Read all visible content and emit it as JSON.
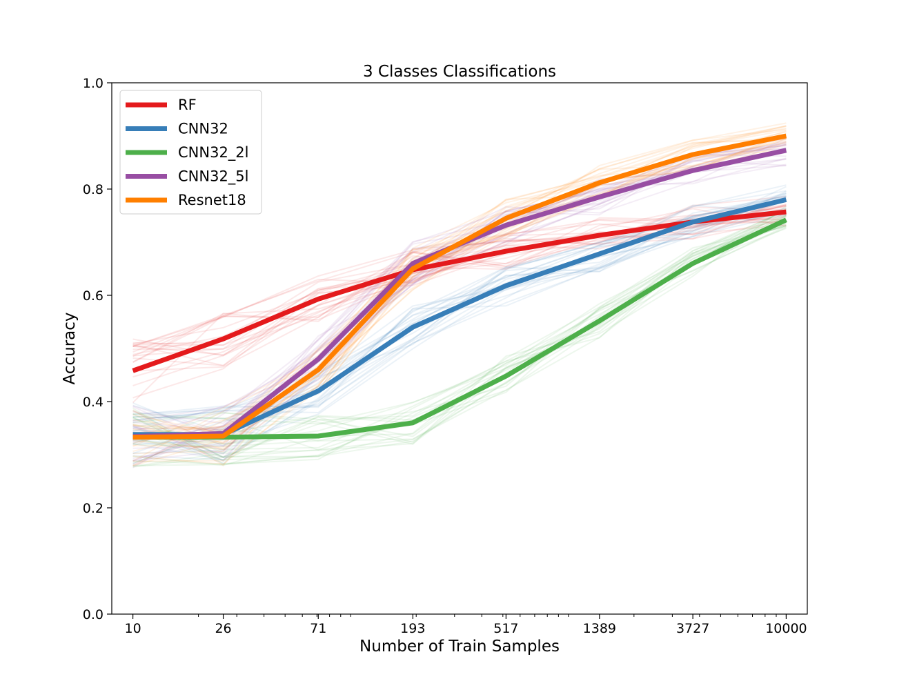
{
  "chart_data": {
    "type": "line",
    "title": "3 Classes Classifications",
    "xlabel": "Number of Train Samples",
    "ylabel": "Accuracy",
    "x_scale": "log",
    "x": [
      10,
      26,
      71,
      193,
      517,
      1389,
      3727,
      10000
    ],
    "x_tick_labels": [
      "10",
      "26",
      "71",
      "193",
      "517",
      "1389",
      "3727",
      "10000"
    ],
    "xlim": [
      8,
      12500
    ],
    "ylim": [
      0.0,
      1.0
    ],
    "y_ticks": [
      "0.0",
      "0.2",
      "0.4",
      "0.6",
      "0.8",
      "1.0"
    ],
    "grid": false,
    "legend_position": "top-left",
    "series": [
      {
        "name": "RF",
        "color": "#e41a1c",
        "values": [
          0.458,
          0.518,
          0.593,
          0.648,
          0.683,
          0.713,
          0.738,
          0.757
        ]
      },
      {
        "name": "CNN32",
        "color": "#377eb8",
        "values": [
          0.338,
          0.338,
          0.42,
          0.54,
          0.618,
          0.678,
          0.738,
          0.78
        ]
      },
      {
        "name": "CNN32_2l",
        "color": "#4daf4a",
        "values": [
          0.333,
          0.333,
          0.335,
          0.36,
          0.448,
          0.552,
          0.66,
          0.742
        ]
      },
      {
        "name": "CNN32_5l",
        "color": "#984ea3",
        "values": [
          0.334,
          0.34,
          0.48,
          0.66,
          0.732,
          0.785,
          0.835,
          0.873
        ]
      },
      {
        "name": "Resnet18",
        "color": "#ff7f00",
        "values": [
          0.333,
          0.335,
          0.46,
          0.65,
          0.745,
          0.812,
          0.865,
          0.9
        ]
      }
    ]
  }
}
